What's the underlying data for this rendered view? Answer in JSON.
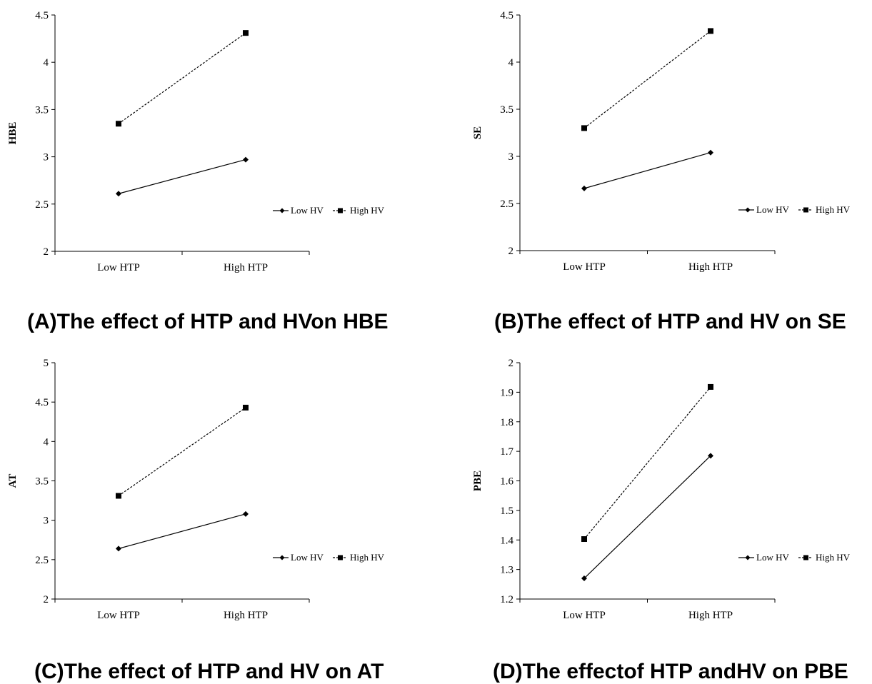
{
  "chart_data": [
    {
      "type": "line",
      "caption": "(A)The effect of HTP and HVon HBE",
      "ylabel": "HBE",
      "categories": [
        "Low HTP",
        "High HTP"
      ],
      "ylim": [
        2,
        4.5
      ],
      "yticks": [
        "2",
        "2.5",
        "3",
        "3.5",
        "4",
        "4.5"
      ],
      "legend_position": "right",
      "series": [
        {
          "name": "Low HV",
          "values": [
            2.61,
            2.97
          ]
        },
        {
          "name": "High HV",
          "values": [
            3.35,
            4.31
          ]
        }
      ]
    },
    {
      "type": "line",
      "caption": "(B)The effect of HTP and HV on SE",
      "ylabel": "SE",
      "categories": [
        "Low HTP",
        "High HTP"
      ],
      "ylim": [
        2,
        4.5
      ],
      "yticks": [
        "2",
        "2.5",
        "3",
        "3.5",
        "4",
        "4.5"
      ],
      "legend_position": "right",
      "series": [
        {
          "name": "Low HV",
          "values": [
            2.66,
            3.04
          ]
        },
        {
          "name": "High HV",
          "values": [
            3.3,
            4.33
          ]
        }
      ]
    },
    {
      "type": "line",
      "caption": "(C)The effect of HTP and HV on AT",
      "ylabel": "AT",
      "categories": [
        "Low HTP",
        "High HTP"
      ],
      "ylim": [
        2,
        5
      ],
      "yticks": [
        "2",
        "2.5",
        "3",
        "3.5",
        "4",
        "4.5",
        "5"
      ],
      "legend_position": "right",
      "series": [
        {
          "name": "Low HV",
          "values": [
            2.64,
            3.08
          ]
        },
        {
          "name": "High HV",
          "values": [
            3.31,
            4.43
          ]
        }
      ]
    },
    {
      "type": "line",
      "caption": "(D)The effectof HTP andHV on PBE",
      "ylabel": "PBE",
      "categories": [
        "Low HTP",
        "High HTP"
      ],
      "ylim": [
        1.2,
        2
      ],
      "yticks": [
        "1.2",
        "1.3",
        "1.4",
        "1.5",
        "1.6",
        "1.7",
        "1.8",
        "1.9",
        "2"
      ],
      "legend_position": "right",
      "series": [
        {
          "name": "Low HV",
          "values": [
            1.27,
            1.685
          ]
        },
        {
          "name": "High HV",
          "values": [
            1.403,
            1.918
          ]
        }
      ]
    }
  ]
}
